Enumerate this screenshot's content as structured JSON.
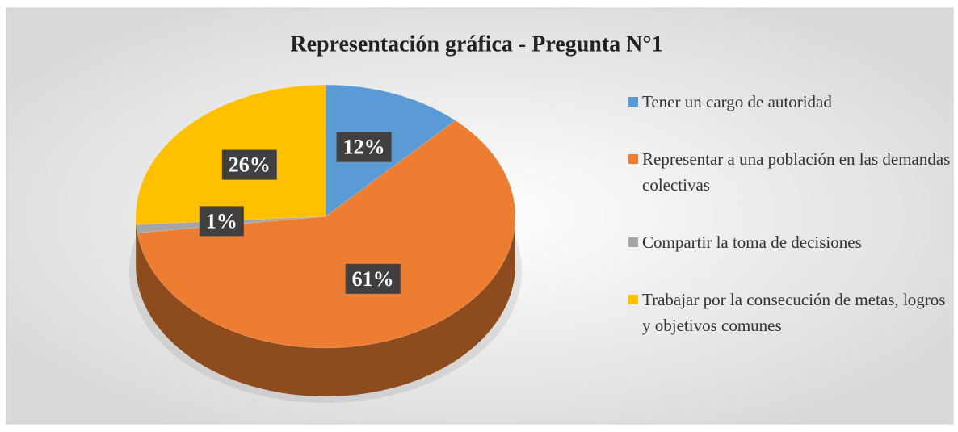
{
  "chart_data": {
    "type": "pie",
    "title": "Representación gráfica - Pregunta N°1",
    "categories": [
      "Tener un cargo de autoridad",
      "Representar a una población en las demandas colectivas",
      "Compartir la toma de decisiones",
      "Trabajar por la consecución de metas, logros y objetivos comunes"
    ],
    "values": [
      12,
      61,
      1,
      26
    ],
    "value_labels": [
      "12%",
      "61%",
      "1%",
      "26%"
    ],
    "colors": [
      "#5b9bd5",
      "#ed7d31",
      "#a5a5a5",
      "#ffc000"
    ],
    "legend": "right"
  }
}
